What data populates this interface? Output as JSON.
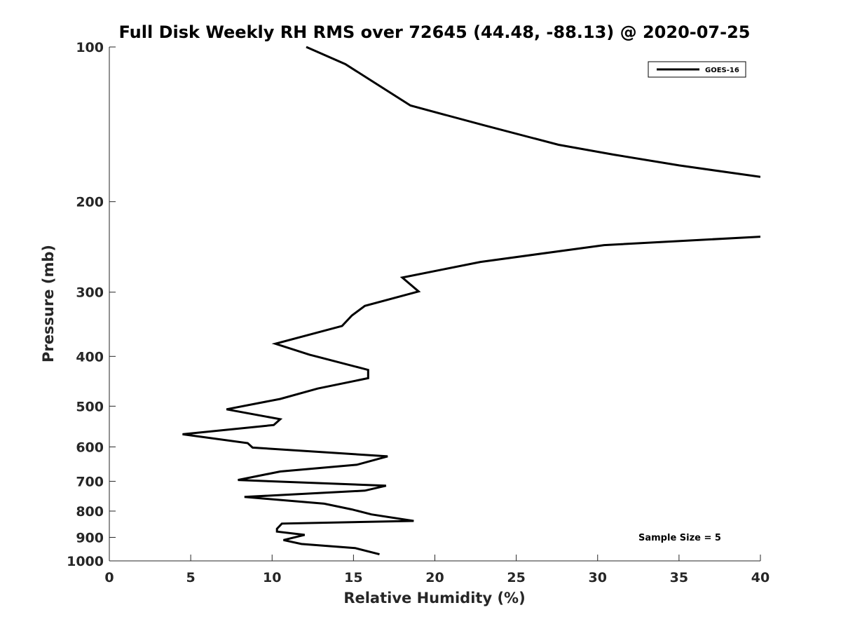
{
  "chart_data": {
    "type": "line",
    "title": "Full Disk Weekly RH RMS over 72645 (44.48, -88.13) @ 2020-07-25",
    "xlabel": "Relative Humidity (%)",
    "ylabel": "Pressure (mb)",
    "xlim": [
      0,
      40
    ],
    "ylim": [
      100,
      1000
    ],
    "yscale": "log",
    "y_reversed": true,
    "xticks": [
      0,
      5,
      10,
      15,
      20,
      25,
      30,
      35,
      40
    ],
    "yticks": [
      100,
      200,
      300,
      400,
      500,
      600,
      700,
      800,
      900,
      1000
    ],
    "grid": false,
    "legend_position": "top-right",
    "annotation": "Sample Size = 5",
    "series": [
      {
        "name": "GOES-16",
        "color": "#000000",
        "segments": [
          {
            "x": [
              12.1,
              14.5,
              18.5,
              23.0,
              27.6,
              31.0,
              35.0,
              40.0
            ],
            "y": [
              100,
              108,
              130,
              142,
              155,
              162,
              170,
              179
            ]
          },
          {
            "x": [
              40.0,
              30.4,
              22.8,
              18.0,
              19.0,
              15.7,
              14.9,
              14.3,
              10.2,
              12.3,
              15.9,
              15.9,
              12.8,
              10.5,
              7.2,
              10.5,
              10.1,
              4.5,
              8.5,
              8.8,
              17.1,
              15.2,
              10.5,
              7.9,
              17.0,
              15.7,
              8.3,
              13.2,
              14.9,
              16.1,
              18.7,
              10.6,
              10.3,
              10.3,
              12.0,
              10.7,
              11.8,
              15.1,
              16.6
            ],
            "y": [
              234,
              243,
              262,
              281,
              299,
              319,
              333,
              349,
              378,
              397,
              425,
              441,
              462,
              484,
              507,
              530,
              544,
              567,
              590,
              602,
              626,
              650,
              670,
              696,
              714,
              730,
              751,
              774,
              794,
              812,
              836,
              846,
              866,
              877,
              890,
              911,
              927,
              944,
              971
            ]
          }
        ]
      }
    ]
  }
}
